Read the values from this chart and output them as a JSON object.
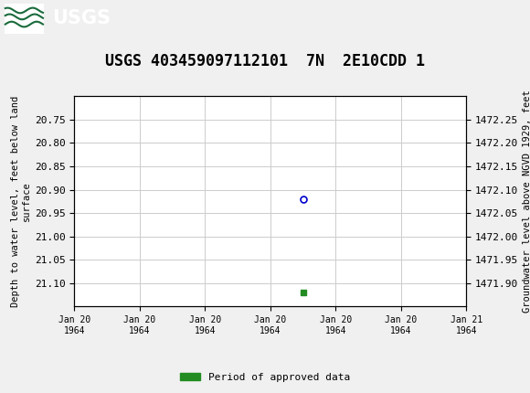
{
  "title": "USGS 403459097112101  7N  2E10CDD 1",
  "title_fontsize": 12,
  "header_bg_color": "#1a6b3c",
  "plot_bg_color": "#ffffff",
  "fig_bg_color": "#f0f0f0",
  "grid_color": "#cccccc",
  "left_ylabel": "Depth to water level, feet below land\nsurface",
  "right_ylabel": "Groundwater level above NGVD 1929, feet",
  "ylim_left_top": 20.7,
  "ylim_left_bottom": 21.15,
  "ylim_right_top": 1472.3,
  "ylim_right_bottom": 1471.85,
  "yticks_left": [
    20.75,
    20.8,
    20.85,
    20.9,
    20.95,
    21.0,
    21.05,
    21.1
  ],
  "yticks_right": [
    1472.25,
    1472.2,
    1472.15,
    1472.1,
    1472.05,
    1472.0,
    1471.95,
    1471.9
  ],
  "data_point_x": 3.5,
  "data_point_y": 20.92,
  "data_point_color": "#0000cd",
  "data_point_size": 5,
  "bar_x": 3.5,
  "bar_y": 21.12,
  "bar_color": "#228b22",
  "xmin": 0,
  "xmax": 6,
  "xtick_positions": [
    0,
    1,
    2,
    3,
    4,
    5,
    6
  ],
  "xtick_labels": [
    "Jan 20\n1964",
    "Jan 20\n1964",
    "Jan 20\n1964",
    "Jan 20\n1964",
    "Jan 20\n1964",
    "Jan 20\n1964",
    "Jan 21\n1964"
  ],
  "legend_label": "Period of approved data",
  "legend_color": "#228b22",
  "font_family": "monospace",
  "tick_fontsize": 8,
  "label_fontsize": 7.5
}
